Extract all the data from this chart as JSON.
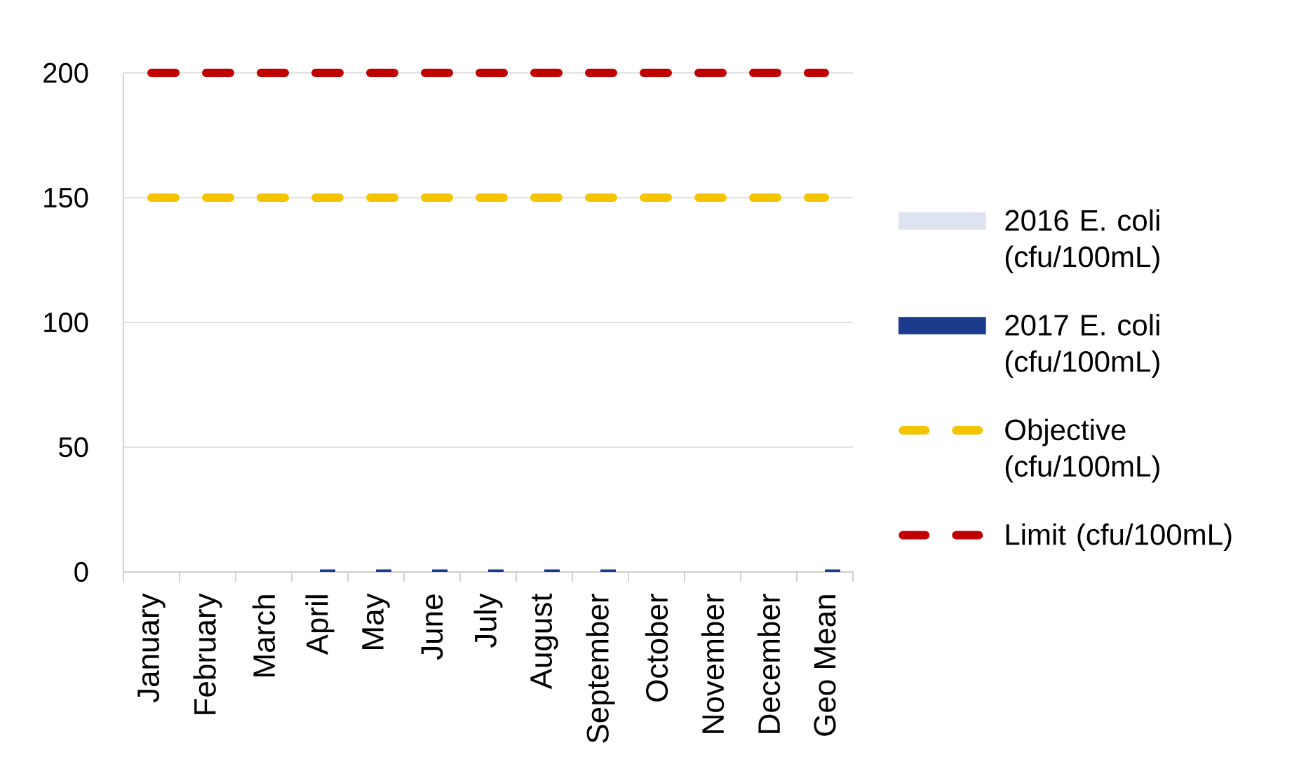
{
  "chart_data": {
    "type": "bar",
    "categories": [
      "January",
      "February",
      "March",
      "April",
      "May",
      "June",
      "July",
      "August",
      "September",
      "October",
      "November",
      "December",
      "Geo Mean"
    ],
    "series": [
      {
        "name": "2016 E. coli (cfu/100mL)",
        "color": "#dde3f0",
        "values": [
          null,
          null,
          null,
          null,
          null,
          null,
          null,
          null,
          null,
          null,
          null,
          null,
          null
        ]
      },
      {
        "name": "2017 E. coli (cfu/100mL)",
        "color": "#1b3a8c",
        "values": [
          null,
          null,
          null,
          1,
          1,
          1,
          1,
          1,
          1,
          null,
          null,
          null,
          1
        ]
      },
      {
        "name": "Objective (cfu/100mL)",
        "type": "line",
        "line_style": "dashed",
        "color": "#f5c400",
        "values": [
          150,
          150,
          150,
          150,
          150,
          150,
          150,
          150,
          150,
          150,
          150,
          150,
          150
        ]
      },
      {
        "name": "Limit (cfu/100mL)",
        "type": "line",
        "line_style": "dashed",
        "color": "#c00000",
        "values": [
          200,
          200,
          200,
          200,
          200,
          200,
          200,
          200,
          200,
          200,
          200,
          200,
          200
        ]
      }
    ],
    "ylim": [
      0,
      200
    ],
    "yticks": [
      0,
      50,
      100,
      150,
      200
    ],
    "grid": "y",
    "legend": "right"
  }
}
